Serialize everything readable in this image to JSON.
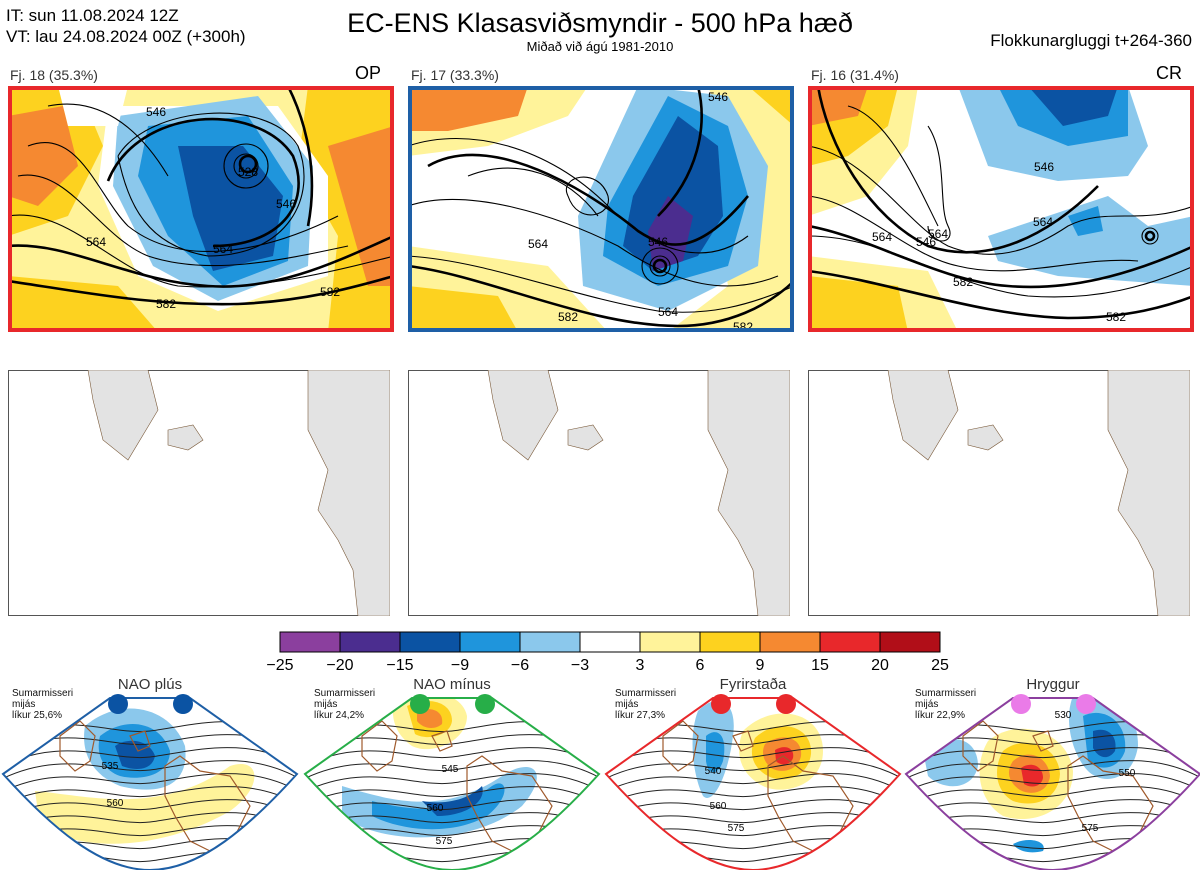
{
  "header": {
    "it_line": "IT: sun 11.08.2024 12Z",
    "vt_line": "VT: lau 24.08.2024 00Z  (+300h)",
    "title": "EC-ENS Klasasviðsmyndir - 500 hPa hæð",
    "subtitle": "Miðað við ágú 1981-2010",
    "window": "Flokkunargluggi t+264-360"
  },
  "clusters": [
    {
      "label": "Fj. 18 (35.3%)",
      "tag": "OP",
      "border": "#e8282b",
      "contours": [
        "546",
        "528",
        "546",
        "564",
        "564",
        "582",
        "582"
      ]
    },
    {
      "label": "Fj. 17 (33.3%)",
      "tag": "",
      "border": "#1e5fa6",
      "contours": [
        "546",
        "564",
        "546",
        "564",
        "582",
        "582"
      ]
    },
    {
      "label": "Fj. 16 (31.4%)",
      "tag": "CR",
      "border": "#e8282b",
      "contours": [
        "546",
        "564",
        "564",
        "546",
        "564",
        "582",
        "582"
      ]
    }
  ],
  "colorbar": {
    "ticks": [
      "−25",
      "−20",
      "−15",
      "−9",
      "−6",
      "−3",
      "3",
      "6",
      "9",
      "15",
      "20",
      "25"
    ],
    "colors": [
      "#8b3f9e",
      "#4b2d8f",
      "#0b53a3",
      "#1f95dc",
      "#8bc8ec",
      "#ffffff",
      "#fff39a",
      "#fdd21f",
      "#f58931",
      "#e8282b",
      "#b10e18"
    ]
  },
  "regimes": [
    {
      "title": "NAO plús",
      "note1": "Sumarmisseri",
      "note2": "mijás",
      "note3": "líkur 25,6%",
      "dot_color": "#0b53a3",
      "frame_color": "#1e5fa6",
      "contours": [
        "535",
        "560"
      ]
    },
    {
      "title": "NAO mínus",
      "note1": "Sumarmisseri",
      "note2": "mijás",
      "note3": "líkur 24,2%",
      "dot_color": "#27ae48",
      "frame_color": "#27ae48",
      "contours": [
        "545",
        "560",
        "575"
      ]
    },
    {
      "title": "Fyrirstaða",
      "note1": "Sumarmisseri",
      "note2": "mijás",
      "note3": "líkur 27,3%",
      "dot_color": "#e8282b",
      "frame_color": "#e8282b",
      "contours": [
        "540",
        "560",
        "575"
      ]
    },
    {
      "title": "Hryggur",
      "note1": "Sumarmisseri",
      "note2": "mijás",
      "note3": "líkur 22,9%",
      "dot_color": "#ea7be8",
      "frame_color": "#8b3f9e",
      "contours": [
        "530",
        "550",
        "575"
      ]
    }
  ]
}
